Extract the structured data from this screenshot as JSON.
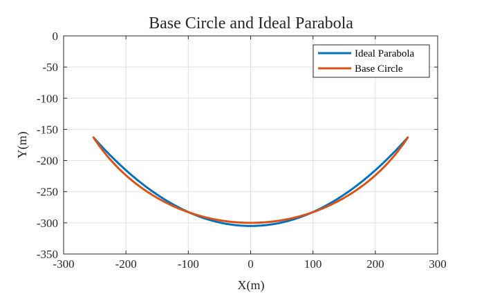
{
  "chart_data": {
    "type": "line",
    "title": "Base Circle and Ideal Parabola",
    "xlabel": "X(m)",
    "ylabel": "Y(m)",
    "xlim": [
      -300,
      300
    ],
    "ylim": [
      -350,
      0
    ],
    "xticks": [
      -300,
      -200,
      -100,
      0,
      100,
      200,
      300
    ],
    "yticks": [
      0,
      -50,
      -100,
      -150,
      -200,
      -250,
      -300,
      -350
    ],
    "grid": true,
    "legend_position": "top-right",
    "series": [
      {
        "name": "Ideal Parabola",
        "color": "#0072BD",
        "kind": "parabola",
        "x": [
          -252,
          -200,
          -150,
          -100,
          -50,
          0,
          50,
          100,
          150,
          200,
          252
        ],
        "y": [
          -163,
          -219,
          -259,
          -287,
          -299.5,
          -305,
          -299.5,
          -287,
          -259,
          -219,
          -163
        ]
      },
      {
        "name": "Base Circle",
        "color": "#D95319",
        "kind": "circle-arc",
        "x": [
          -252,
          -200,
          -150,
          -100,
          -50,
          0,
          50,
          100,
          150,
          200,
          252
        ],
        "y": [
          -163,
          -224,
          -263,
          -285,
          -296,
          -300,
          -296,
          -285,
          -263,
          -224,
          -163
        ]
      }
    ]
  }
}
